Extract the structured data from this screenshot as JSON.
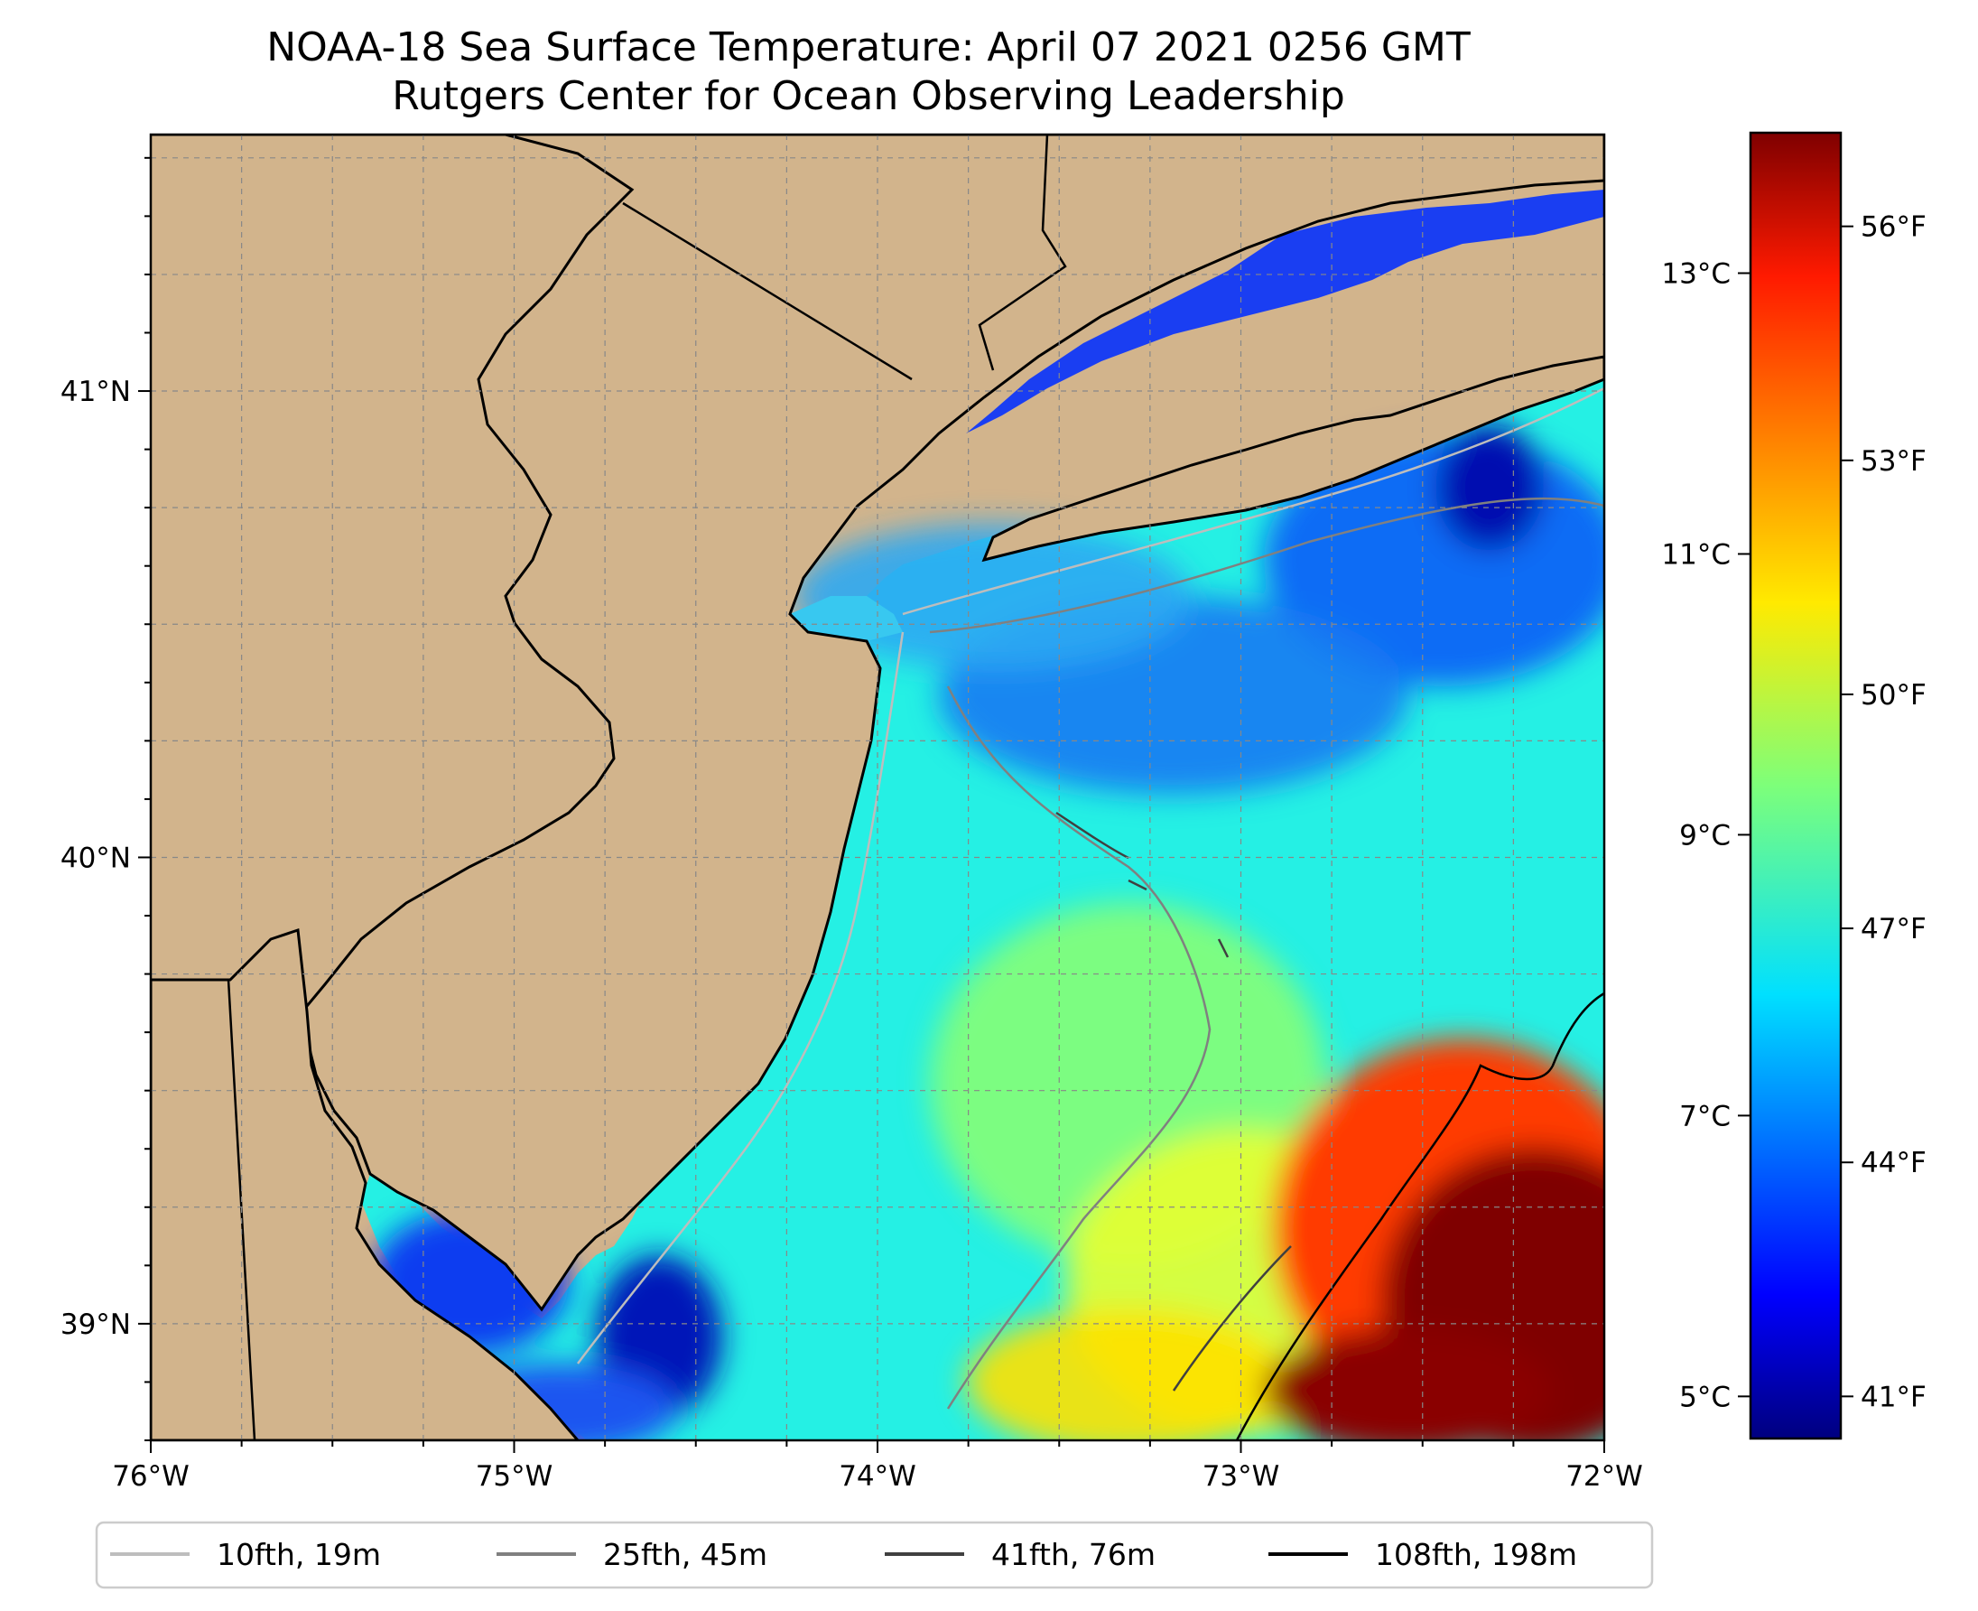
{
  "title": {
    "line1": "NOAA-18 Sea Surface Temperature: April 07 2021 0256 GMT",
    "line2": "Rutgers Center for Ocean Observing Leadership"
  },
  "map": {
    "lon_range": [
      -76.0,
      -72.0
    ],
    "lat_range": [
      38.75,
      41.55
    ],
    "land_color": "#d2b48c",
    "gridlines": true
  },
  "axes": {
    "x_ticks": [
      {
        "lon": -76,
        "label": "76°W"
      },
      {
        "lon": -75,
        "label": "75°W"
      },
      {
        "lon": -74,
        "label": "74°W"
      },
      {
        "lon": -73,
        "label": "73°W"
      },
      {
        "lon": -72,
        "label": "72°W"
      }
    ],
    "y_ticks": [
      {
        "lat": 41,
        "label": "41°N"
      },
      {
        "lat": 40,
        "label": "40°N"
      },
      {
        "lat": 39,
        "label": "39°N"
      }
    ]
  },
  "colorbar": {
    "colormap": "jet",
    "range_c": [
      4.7,
      14.0
    ],
    "celsius_ticks": [
      {
        "value": 13,
        "label": "13°C"
      },
      {
        "value": 11,
        "label": "11°C"
      },
      {
        "value": 9,
        "label": "9°C"
      },
      {
        "value": 7,
        "label": "7°C"
      },
      {
        "value": 5,
        "label": "5°C"
      }
    ],
    "fahrenheit_ticks": [
      {
        "value": 56,
        "label": "56°F"
      },
      {
        "value": 53,
        "label": "53°F"
      },
      {
        "value": 50,
        "label": "50°F"
      },
      {
        "value": 47,
        "label": "47°F"
      },
      {
        "value": 44,
        "label": "44°F"
      },
      {
        "value": 41,
        "label": "41°F"
      }
    ]
  },
  "legend": {
    "placement": "bottom",
    "items": [
      {
        "label": "10fth, 19m",
        "color": "#bdbdbd"
      },
      {
        "label": "25fth, 45m",
        "color": "#808080"
      },
      {
        "label": "41fth, 76m",
        "color": "#404040"
      },
      {
        "label": "108fth, 198m",
        "color": "#000000"
      }
    ]
  }
}
